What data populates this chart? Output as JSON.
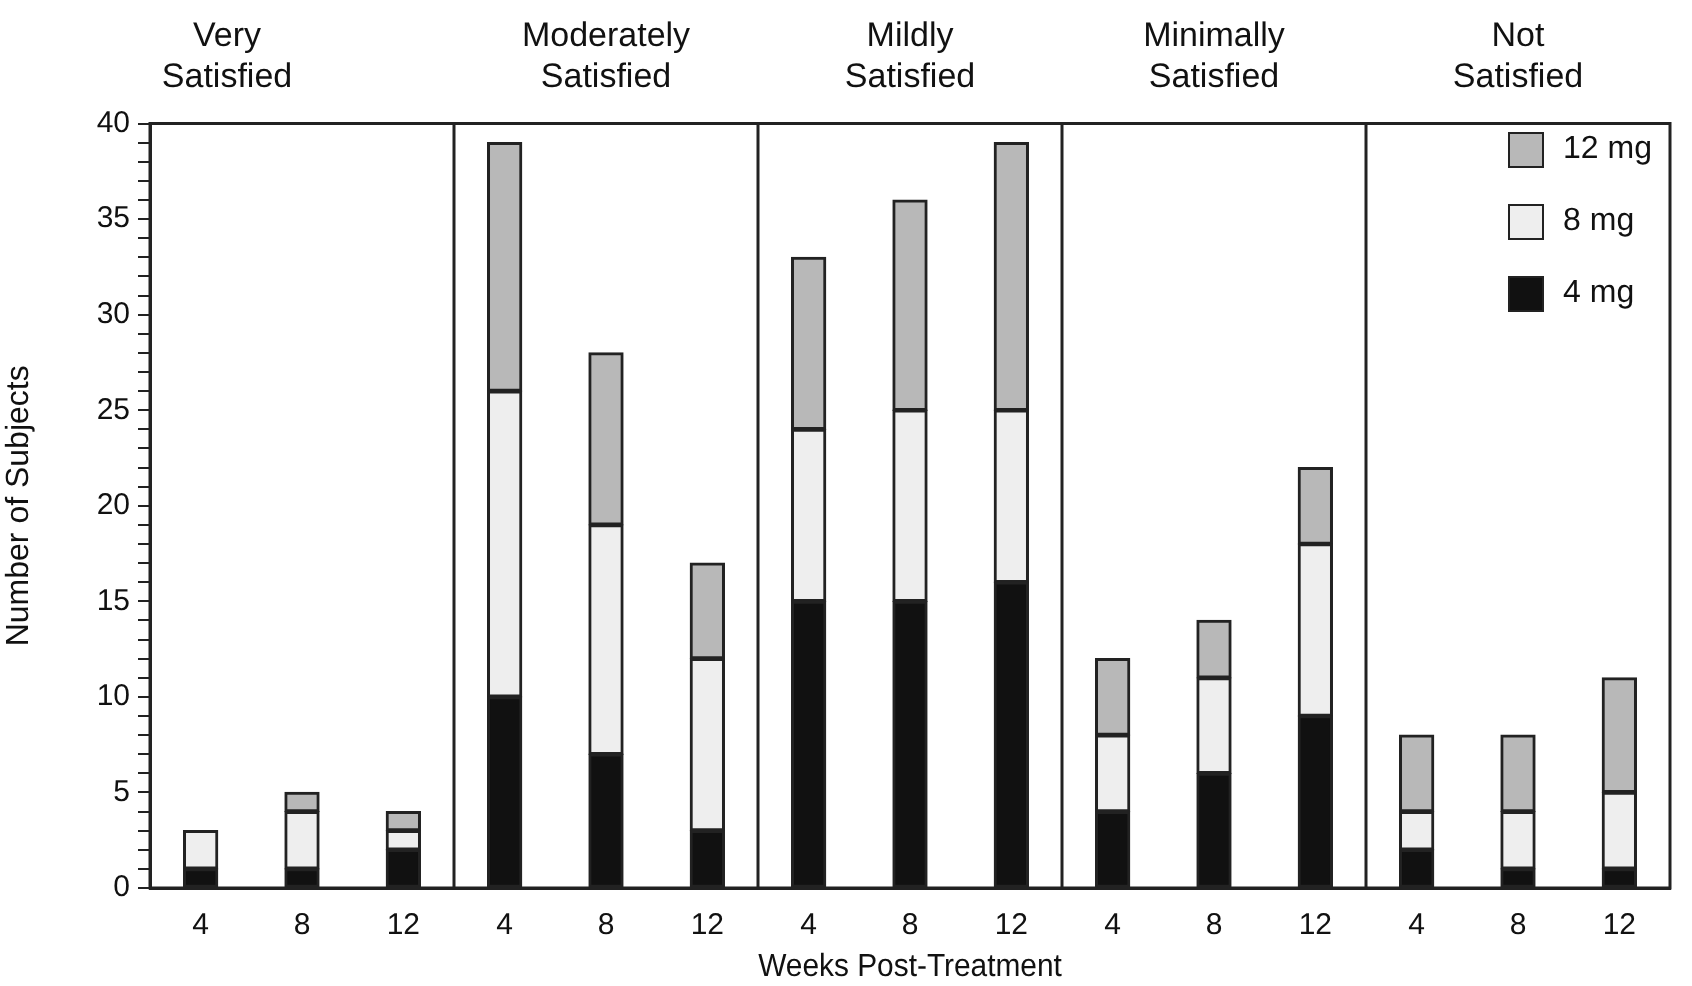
{
  "chart_data": [
    {
      "type": "bar",
      "title": "Very Satisfied",
      "ylabel": "Number of Subjects",
      "categories": [
        "4",
        "8",
        "12"
      ],
      "stacked": true,
      "ylim": [
        0,
        40
      ],
      "yticks": [
        0,
        {
          "value": 1,
          "label": null
        },
        {
          "value": 2,
          "label": null
        },
        {
          "value": 3,
          "label": null
        },
        {
          "value": 4,
          "label": null
        },
        5,
        {
          "value": 6,
          "label": null
        },
        {
          "value": 7,
          "label": null
        },
        {
          "value": 8,
          "label": null
        },
        {
          "value": 9,
          "label": null
        },
        10,
        {
          "value": 11,
          "label": null
        },
        {
          "value": 12,
          "label": null
        },
        {
          "value": 13,
          "label": null
        },
        {
          "value": 14,
          "label": null
        },
        15,
        {
          "value": 16,
          "label": null
        },
        {
          "value": 17,
          "label": null
        },
        {
          "value": 18,
          "label": null
        },
        {
          "value": 19,
          "label": null
        },
        20,
        {
          "value": 21,
          "label": null
        },
        {
          "value": 22,
          "label": null
        },
        {
          "value": 23,
          "label": null
        },
        {
          "value": 24,
          "label": null
        },
        25,
        {
          "value": 26,
          "label": null
        },
        {
          "value": 27,
          "label": null
        },
        {
          "value": 28,
          "label": null
        },
        {
          "value": 29,
          "label": null
        },
        30,
        {
          "value": 31,
          "label": null
        },
        {
          "value": 32,
          "label": null
        },
        {
          "value": 33,
          "label": null
        },
        {
          "value": 34,
          "label": null
        },
        35,
        {
          "value": 36,
          "label": null
        },
        {
          "value": 37,
          "label": null
        },
        {
          "value": 38,
          "label": null
        },
        {
          "value": 39,
          "label": null
        },
        40
      ],
      "series": [
        {
          "color": "#111111",
          "values": [
            1,
            1,
            2
          ]
        },
        {
          "color": "#eeeeee",
          "values": [
            2,
            3,
            1
          ]
        },
        {
          "color": "#b8b8b8",
          "values": [
            0,
            1,
            1
          ]
        }
      ]
    },
    {
      "type": "bar",
      "title": "Moderately Satisfied",
      "categories": [
        "4",
        "8",
        "12"
      ],
      "stacked": true,
      "ylim": [
        0,
        40
      ],
      "yticks": [
        0,
        5,
        10,
        15,
        20,
        25,
        30,
        35,
        40
      ],
      "tick_labels": "x",
      "series": [
        {
          "color": "#111111",
          "values": [
            10,
            7,
            3
          ]
        },
        {
          "color": "#eeeeee",
          "values": [
            16,
            12,
            9
          ]
        },
        {
          "color": "#b8b8b8",
          "values": [
            13,
            9,
            5
          ]
        }
      ]
    },
    {
      "type": "bar",
      "title": "Mildly Satisfied",
      "xlabel": "Weeks Post-Treatment",
      "categories": [
        "4",
        "8",
        "12"
      ],
      "stacked": true,
      "ylim": [
        0,
        40
      ],
      "yticks": [
        0,
        5,
        10,
        15,
        20,
        25,
        30,
        35,
        40
      ],
      "tick_labels": "x",
      "series": [
        {
          "color": "#111111",
          "values": [
            15,
            15,
            16
          ]
        },
        {
          "color": "#eeeeee",
          "values": [
            9,
            10,
            9
          ]
        },
        {
          "color": "#b8b8b8",
          "values": [
            9,
            11,
            14
          ]
        }
      ]
    },
    {
      "type": "bar",
      "title": "Minimally Satisfied",
      "categories": [
        "4",
        "8",
        "12"
      ],
      "stacked": true,
      "ylim": [
        0,
        40
      ],
      "yticks": [
        0,
        5,
        10,
        15,
        20,
        25,
        30,
        35,
        40
      ],
      "tick_labels": "x",
      "series": [
        {
          "color": "#111111",
          "values": [
            4,
            6,
            9
          ]
        },
        {
          "color": "#eeeeee",
          "values": [
            4,
            5,
            9
          ]
        },
        {
          "color": "#b8b8b8",
          "values": [
            4,
            3,
            4
          ]
        }
      ]
    },
    {
      "type": "bar",
      "title": "Not Satisfied",
      "categories": [
        "4",
        "8",
        "12"
      ],
      "stacked": true,
      "ylim": [
        0,
        40
      ],
      "yticks": [
        0,
        5,
        10,
        15,
        20,
        25,
        30,
        35,
        40
      ],
      "tick_labels": "x",
      "legend": "top right",
      "series": [
        {
          "name": "4 mg",
          "color": "#111111",
          "values": [
            2,
            1,
            1
          ]
        },
        {
          "name": "8 mg",
          "color": "#eeeeee",
          "values": [
            2,
            3,
            4
          ]
        },
        {
          "name": "12 mg",
          "color": "#b8b8b8",
          "values": [
            4,
            4,
            6
          ]
        }
      ]
    }
  ]
}
